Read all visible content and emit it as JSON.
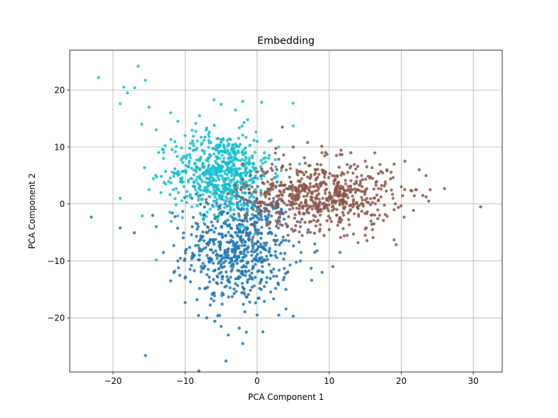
{
  "chart_data": {
    "type": "scatter",
    "title": "Embedding",
    "xlabel": "PCA Component 1",
    "ylabel": "PCA Component 2",
    "xlim": [
      -26,
      34
    ],
    "ylim": [
      -29.5,
      27
    ],
    "x_ticks": [
      -20,
      -10,
      0,
      10,
      20,
      30
    ],
    "y_ticks": [
      -20,
      -10,
      0,
      10,
      20
    ],
    "x_tick_labels": [
      "−20",
      "−10",
      "0",
      "10",
      "20",
      "30"
    ],
    "y_tick_labels": [
      "−20",
      "−10",
      "0",
      "10",
      "20"
    ],
    "grid": true,
    "legend": "none",
    "series": [
      {
        "color": "#1f77b4",
        "center": [
          -2.5,
          -7.5
        ],
        "spread": [
          3.6,
          5.2
        ],
        "count": 650,
        "points": [
          [
            -23,
            -2.3
          ],
          [
            -19,
            -4.2
          ],
          [
            -15.5,
            -26.6
          ],
          [
            -14.5,
            -2
          ],
          [
            -14,
            -4
          ],
          [
            -13,
            -8.5
          ],
          [
            -12,
            -13.5
          ],
          [
            -11,
            -10
          ],
          [
            -10,
            -13
          ],
          [
            -9,
            -4
          ],
          [
            -8,
            -9
          ],
          [
            -7,
            -20
          ],
          [
            -6,
            -17
          ],
          [
            -5,
            -21.5
          ],
          [
            -4,
            -23
          ],
          [
            -3,
            -14
          ],
          [
            -2,
            -24.5
          ],
          [
            -1.5,
            -22.5
          ],
          [
            0,
            -19.5
          ],
          [
            1,
            -14.5
          ],
          [
            2,
            -12
          ],
          [
            3,
            -19.5
          ],
          [
            4,
            -15
          ],
          [
            5,
            -19.7
          ],
          [
            6,
            -10
          ],
          [
            7,
            -5
          ],
          [
            8,
            -7
          ],
          [
            9,
            -12
          ],
          [
            10.5,
            -11
          ],
          [
            11.5,
            -8.5
          ],
          [
            -3,
            -7
          ],
          [
            -1,
            -5
          ],
          [
            -4,
            -9
          ],
          [
            -2,
            -3
          ],
          [
            0,
            -8
          ]
        ]
      },
      {
        "color": "#17becf",
        "center": [
          -5,
          5.5
        ],
        "spread": [
          3.4,
          3.6
        ],
        "count": 650,
        "points": [
          [
            -22,
            22.2
          ],
          [
            -19,
            17.6
          ],
          [
            -18.5,
            20.5
          ],
          [
            -18,
            19.5
          ],
          [
            -17,
            20.4
          ],
          [
            -16.5,
            24.2
          ],
          [
            -15.5,
            21.7
          ],
          [
            -16,
            14
          ],
          [
            -15,
            17
          ],
          [
            -14,
            13
          ],
          [
            -13,
            8
          ],
          [
            -12,
            16
          ],
          [
            -11,
            14.5
          ],
          [
            -10,
            12
          ],
          [
            -8,
            15.5
          ],
          [
            -6,
            18.3
          ],
          [
            -5,
            17.5
          ],
          [
            -3,
            16.5
          ],
          [
            -2,
            18
          ],
          [
            5,
            17.7
          ],
          [
            5,
            13.7
          ],
          [
            0,
            11
          ],
          [
            1,
            9
          ],
          [
            3,
            10
          ],
          [
            -15,
            2.5
          ],
          [
            -14,
            -4
          ],
          [
            -14,
            -9.8
          ],
          [
            -19,
            1
          ],
          [
            -7,
            4.5
          ],
          [
            -4,
            8
          ]
        ]
      },
      {
        "color": "#8c564b",
        "center": [
          8.5,
          1.5
        ],
        "spread": [
          5.2,
          3.0
        ],
        "count": 650,
        "points": [
          [
            3.5,
            13.5
          ],
          [
            5,
            10
          ],
          [
            7,
            10.8
          ],
          [
            9,
            9
          ],
          [
            11,
            8.5
          ],
          [
            13,
            9
          ],
          [
            15,
            7.5
          ],
          [
            18,
            6
          ],
          [
            19,
            7
          ],
          [
            20.5,
            7.5
          ],
          [
            22.5,
            6
          ],
          [
            20,
            3
          ],
          [
            22,
            2.5
          ],
          [
            24,
            2.5
          ],
          [
            26,
            2.7
          ],
          [
            23,
            1.5
          ],
          [
            23.8,
            0.5
          ],
          [
            31,
            -0.5
          ],
          [
            19,
            -1
          ],
          [
            17,
            -2
          ],
          [
            16,
            -4.5
          ],
          [
            15,
            -5.5
          ],
          [
            14,
            -6.8
          ],
          [
            12.5,
            -5.5
          ],
          [
            10,
            -4.5
          ],
          [
            19,
            -6.3
          ],
          [
            6,
            -4
          ],
          [
            4,
            -3.5
          ],
          [
            2,
            0
          ],
          [
            7.5,
            2
          ],
          [
            11,
            0.5
          ]
        ]
      }
    ]
  }
}
